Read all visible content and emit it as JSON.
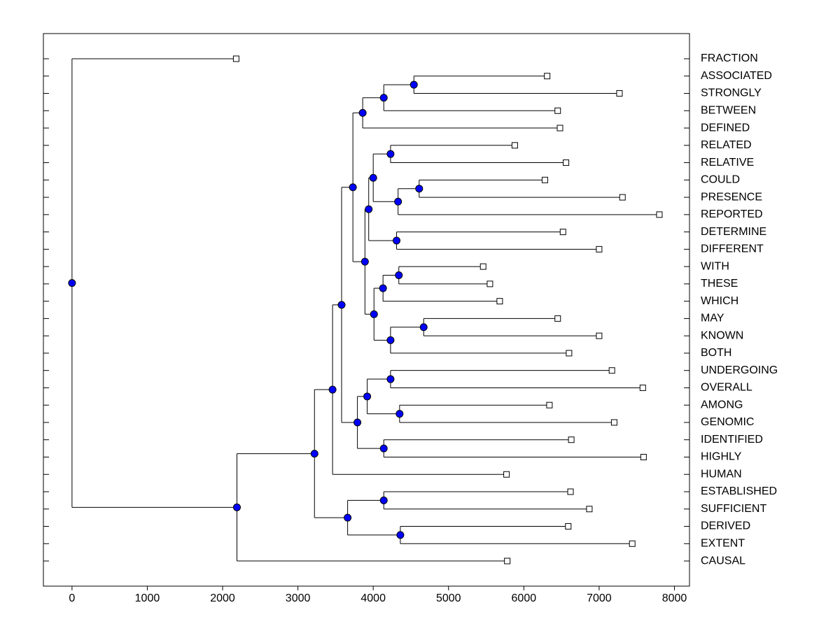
{
  "chart_data": {
    "type": "dendrogram",
    "xlim": [
      -380,
      8200
    ],
    "xticks": [
      0,
      1000,
      2000,
      3000,
      4000,
      5000,
      6000,
      7000,
      8000
    ],
    "leaf_color": "#ffffff",
    "node_color": "#0000ff",
    "leaves": [
      {
        "label": "FRACTION",
        "value": 2180
      },
      {
        "label": "ASSOCIATED",
        "value": 6310
      },
      {
        "label": "STRONGLY",
        "value": 7270
      },
      {
        "label": "BETWEEN",
        "value": 6450
      },
      {
        "label": "DEFINED",
        "value": 6480
      },
      {
        "label": "RELATED",
        "value": 5880
      },
      {
        "label": "RELATIVE",
        "value": 6560
      },
      {
        "label": "COULD",
        "value": 6280
      },
      {
        "label": "PRESENCE",
        "value": 7310
      },
      {
        "label": "REPORTED",
        "value": 7800
      },
      {
        "label": "DETERMINE",
        "value": 6520
      },
      {
        "label": "DIFFERENT",
        "value": 7000
      },
      {
        "label": "WITH",
        "value": 5460
      },
      {
        "label": "THESE",
        "value": 5550
      },
      {
        "label": "WHICH",
        "value": 5680
      },
      {
        "label": "MAY",
        "value": 6450
      },
      {
        "label": "KNOWN",
        "value": 7000
      },
      {
        "label": "BOTH",
        "value": 6600
      },
      {
        "label": "UNDERGOING",
        "value": 7170
      },
      {
        "label": "OVERALL",
        "value": 7580
      },
      {
        "label": "AMONG",
        "value": 6340
      },
      {
        "label": "GENOMIC",
        "value": 7200
      },
      {
        "label": "IDENTIFIED",
        "value": 6630
      },
      {
        "label": "HIGHLY",
        "value": 7590
      },
      {
        "label": "HUMAN",
        "value": 5770
      },
      {
        "label": "ESTABLISHED",
        "value": 6620
      },
      {
        "label": "SUFFICIENT",
        "value": 6870
      },
      {
        "label": "DERIVED",
        "value": 6590
      },
      {
        "label": "EXTENT",
        "value": 7440
      },
      {
        "label": "CAUSAL",
        "value": 5780
      }
    ],
    "nodes": [
      {
        "children": [
          1,
          2
        ],
        "value": 4540
      },
      {
        "children": [
          30,
          3
        ],
        "value": 4140
      },
      {
        "children": [
          31,
          4
        ],
        "value": 3860
      },
      {
        "children": [
          5,
          6
        ],
        "value": 4230
      },
      {
        "children": [
          7,
          8
        ],
        "value": 4610
      },
      {
        "children": [
          34,
          9
        ],
        "value": 4330
      },
      {
        "children": [
          33,
          35
        ],
        "value": 4000
      },
      {
        "children": [
          10,
          11
        ],
        "value": 4310
      },
      {
        "children": [
          36,
          37
        ],
        "value": 3940
      },
      {
        "children": [
          12,
          13
        ],
        "value": 4340
      },
      {
        "children": [
          39,
          14
        ],
        "value": 4130
      },
      {
        "children": [
          15,
          16
        ],
        "value": 4670
      },
      {
        "children": [
          41,
          17
        ],
        "value": 4230
      },
      {
        "children": [
          40,
          42
        ],
        "value": 4010
      },
      {
        "children": [
          38,
          43
        ],
        "value": 3890
      },
      {
        "children": [
          32,
          44
        ],
        "value": 3730
      },
      {
        "children": [
          18,
          19
        ],
        "value": 4230
      },
      {
        "children": [
          20,
          21
        ],
        "value": 4350
      },
      {
        "children": [
          46,
          47
        ],
        "value": 3920
      },
      {
        "children": [
          22,
          23
        ],
        "value": 4140
      },
      {
        "children": [
          48,
          49
        ],
        "value": 3790
      },
      {
        "children": [
          45,
          50
        ],
        "value": 3580
      },
      {
        "children": [
          51,
          24
        ],
        "value": 3460
      },
      {
        "children": [
          25,
          26
        ],
        "value": 4140
      },
      {
        "children": [
          27,
          28
        ],
        "value": 4360
      },
      {
        "children": [
          53,
          54
        ],
        "value": 3660
      },
      {
        "children": [
          52,
          55
        ],
        "value": 3220
      },
      {
        "children": [
          56,
          29
        ],
        "value": 2190
      },
      {
        "children": [
          0,
          57
        ],
        "value": 0
      }
    ]
  }
}
